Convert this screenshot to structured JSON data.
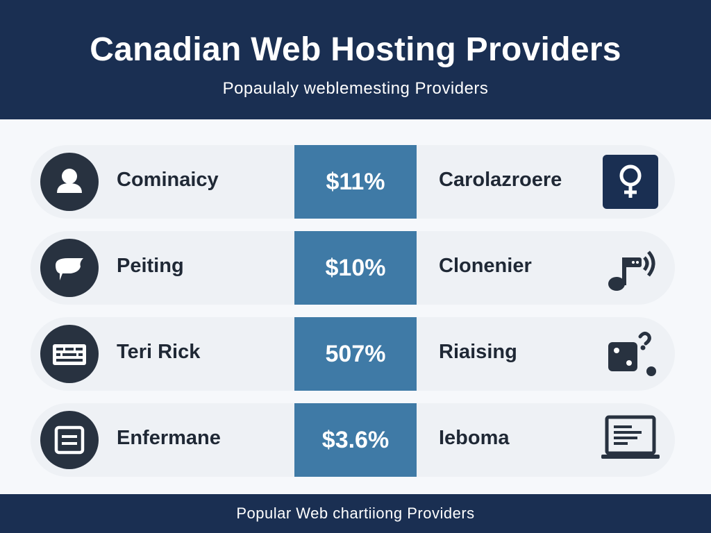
{
  "header": {
    "title": "Canadian Web Hosting Providers",
    "subtitle": "Popaulaly weblemesting Providers"
  },
  "rows": [
    {
      "left_label": "Cominaicy",
      "left_icon": "user-icon",
      "value": "$11%",
      "right_label": "Carolazroere",
      "right_icon": "female-symbol-icon"
    },
    {
      "left_label": "Peiting",
      "left_icon": "speech-bubble-icon",
      "value": "$10%",
      "right_label": "Clonenier",
      "right_icon": "music-note-icon"
    },
    {
      "left_label": "Teri Rick",
      "left_icon": "keyboard-icon",
      "value": "507%",
      "right_label": "Riaising",
      "right_icon": "dice-icon"
    },
    {
      "left_label": "Enfermane",
      "left_icon": "document-icon",
      "value": "$3.6%",
      "right_label": "Ieboma",
      "right_icon": "laptop-icon"
    }
  ],
  "footer": {
    "text": "Popular Web chartiiong Providers"
  },
  "colors": {
    "header_bg": "#1a2f52",
    "value_box": "#3f7aa6",
    "icon_dark": "#283240"
  }
}
